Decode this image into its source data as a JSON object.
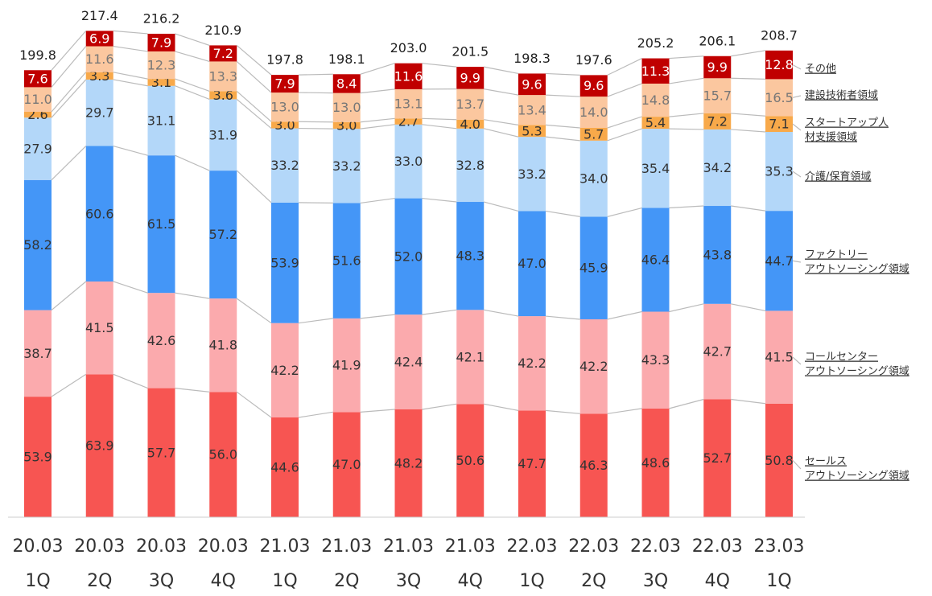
{
  "chart_data": {
    "type": "stacked_bar",
    "categories": [
      [
        "20.03",
        "1Q"
      ],
      [
        "20.03",
        "2Q"
      ],
      [
        "20.03",
        "3Q"
      ],
      [
        "20.03",
        "4Q"
      ],
      [
        "21.03",
        "1Q"
      ],
      [
        "21.03",
        "2Q"
      ],
      [
        "21.03",
        "3Q"
      ],
      [
        "21.03",
        "4Q"
      ],
      [
        "22.03",
        "1Q"
      ],
      [
        "22.03",
        "2Q"
      ],
      [
        "22.03",
        "3Q"
      ],
      [
        "22.03",
        "4Q"
      ],
      [
        "23.03",
        "1Q"
      ]
    ],
    "series": [
      {
        "name": [
          "セールス",
          "アウトソーシング領域"
        ],
        "color": "#f75552",
        "values": [
          53.9,
          63.9,
          57.7,
          56.0,
          44.6,
          47.0,
          48.2,
          50.6,
          47.7,
          46.3,
          48.6,
          52.7,
          50.8
        ],
        "value_labels": [
          "53.9",
          "63.9",
          "57.7",
          "56.0",
          "44.6",
          "47.0",
          "48.2",
          "50.6",
          "47.7",
          "46.3",
          "48.6",
          "52.7",
          "50.8"
        ]
      },
      {
        "name": [
          "コールセンター",
          "アウトソーシング領域"
        ],
        "color": "#fbaaad",
        "values": [
          38.7,
          41.5,
          42.6,
          41.8,
          42.2,
          41.9,
          42.4,
          42.1,
          42.2,
          42.2,
          43.3,
          42.7,
          41.5
        ],
        "value_labels": [
          "38.7",
          "41.5",
          "42.6",
          "41.8",
          "42.2",
          "41.9",
          "42.4",
          "42.1",
          "42.2",
          "42.2",
          "43.3",
          "42.7",
          "41.5"
        ]
      },
      {
        "name": [
          "ファクトリー",
          "アウトソーシング領域"
        ],
        "color": "#4496f7",
        "values": [
          58.2,
          60.6,
          61.5,
          57.2,
          53.9,
          51.6,
          52.0,
          48.3,
          47.0,
          45.9,
          46.4,
          43.8,
          44.7
        ],
        "value_labels": [
          "58.2",
          "60.6",
          "61.5",
          "57.2",
          "53.9",
          "51.6",
          "52.0",
          "48.3",
          "47.0",
          "45.9",
          "46.4",
          "43.8",
          "44.7"
        ]
      },
      {
        "name": [
          "介護/保育領域"
        ],
        "color": "#b3d7f9",
        "values": [
          27.9,
          29.7,
          31.1,
          31.9,
          33.2,
          33.2,
          33.0,
          32.8,
          33.2,
          34.0,
          35.4,
          34.2,
          35.3
        ],
        "value_labels": [
          "27.9",
          "29.7",
          "31.1",
          "31.9",
          "33.2",
          "33.2",
          "33.0",
          "32.8",
          "33.2",
          "34.0",
          "35.4",
          "34.2",
          "35.3"
        ]
      },
      {
        "name": [
          "スタートアップ人",
          "材支援領域"
        ],
        "color": "#f8a94a",
        "values": [
          2.6,
          3.3,
          3.1,
          3.6,
          3.0,
          3.0,
          2.7,
          4.0,
          5.3,
          5.7,
          5.4,
          7.2,
          7.1
        ],
        "value_labels": [
          "2.6",
          "3.3",
          "3.1",
          "3.6",
          "3.0",
          "3.0",
          "2.7",
          "4.0",
          "5.3",
          "5.7",
          "5.4",
          "7.2",
          "7.1"
        ]
      },
      {
        "name": [
          "建設技術者領域"
        ],
        "color": "#fbc79f",
        "values": [
          11.0,
          11.6,
          12.3,
          13.3,
          13.0,
          13.0,
          13.1,
          13.7,
          13.4,
          14.0,
          14.8,
          15.7,
          16.5
        ],
        "value_labels": [
          "11.0",
          "11.6",
          "12.3",
          "13.3",
          "13.0",
          "13.0",
          "13.1",
          "13.7",
          "13.4",
          "14.0",
          "14.8",
          "15.7",
          "16.5"
        ]
      },
      {
        "name": [
          "その他"
        ],
        "color": "#c00000",
        "values": [
          7.6,
          6.9,
          7.9,
          7.2,
          7.9,
          8.4,
          11.6,
          9.9,
          9.6,
          9.6,
          11.3,
          9.9,
          12.8
        ],
        "value_labels": [
          "7.6",
          "6.9",
          "7.9",
          "7.2",
          "7.9",
          "8.4",
          "11.6",
          "9.9",
          "9.6",
          "9.6",
          "11.3",
          "9.9",
          "12.8"
        ]
      }
    ],
    "totals": [
      199.8,
      217.4,
      216.2,
      210.9,
      197.8,
      198.1,
      203.0,
      201.5,
      198.3,
      197.6,
      205.2,
      206.1,
      208.7
    ],
    "total_labels": [
      "199.8",
      "217.4",
      "216.2",
      "210.9",
      "197.8",
      "198.1",
      "203.0",
      "201.5",
      "198.3",
      "197.6",
      "205.2",
      "206.1",
      "208.7"
    ]
  }
}
